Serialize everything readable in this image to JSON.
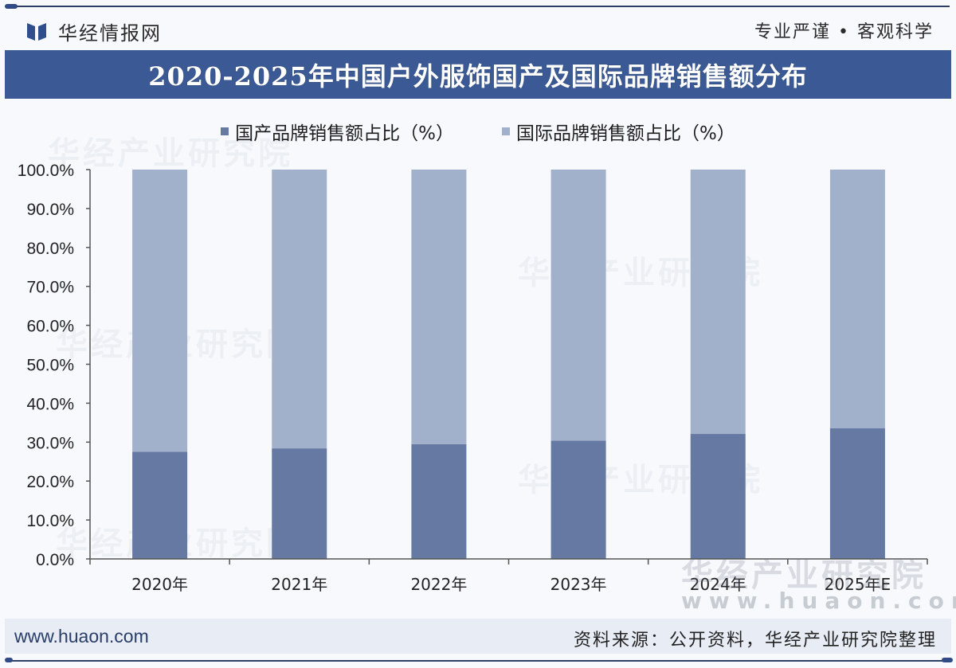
{
  "header": {
    "brand_name": "华经情报网",
    "brand_icon": "book-logo-icon",
    "slogan": "专业严谨 • 客观科学"
  },
  "watermarks": {
    "org": "华经产业研究院",
    "url": "www.huaon.com"
  },
  "footer": {
    "url": "www.huaon.com",
    "source": "资料来源：公开资料，华经产业研究院整理"
  },
  "colors": {
    "title_bar": "#3b5a95",
    "domestic": "#6579a3",
    "international": "#a2b1cb",
    "axis": "#555555"
  },
  "chart_data": {
    "type": "bar",
    "stacked": true,
    "title": "2020-2025年中国户外服饰国产及国际品牌销售额分布",
    "xlabel": "",
    "ylabel": "",
    "categories": [
      "2020年",
      "2021年",
      "2022年",
      "2023年",
      "2024年",
      "2025年E"
    ],
    "series": [
      {
        "name": "国产品牌销售额占比（%）",
        "values": [
          27.5,
          28.4,
          29.5,
          30.4,
          32.1,
          33.6
        ]
      },
      {
        "name": "国际品牌销售额占比（%）",
        "values": [
          72.5,
          71.6,
          70.5,
          69.6,
          67.9,
          66.4
        ]
      }
    ],
    "ylim": [
      0,
      100
    ],
    "yticks": [
      0,
      10,
      20,
      30,
      40,
      50,
      60,
      70,
      80,
      90,
      100
    ],
    "ytick_labels": [
      "0.0%",
      "10.0%",
      "20.0%",
      "30.0%",
      "40.0%",
      "50.0%",
      "60.0%",
      "70.0%",
      "80.0%",
      "90.0%",
      "100.0%"
    ],
    "grid": false,
    "legend_position": "top-center"
  }
}
